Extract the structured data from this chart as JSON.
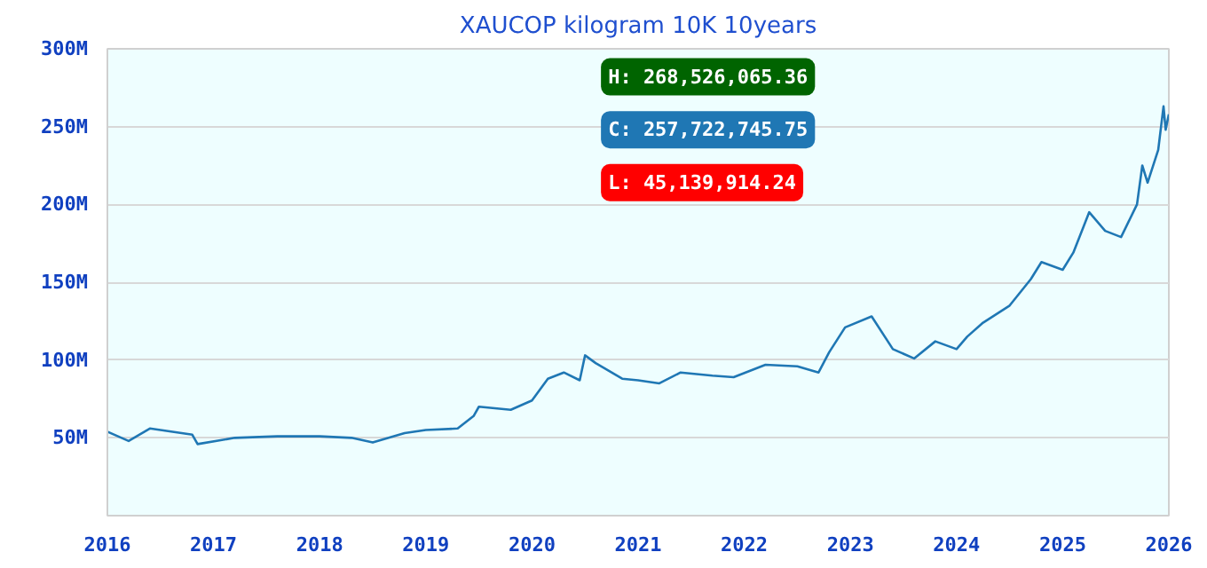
{
  "chart_data": {
    "type": "line",
    "title": "XAUCOP kilogram 10K 10years",
    "x": [
      2016.0,
      2016.2,
      2016.4,
      2016.5,
      2016.8,
      2016.85,
      2017.2,
      2017.6,
      2018.0,
      2018.3,
      2018.5,
      2018.8,
      2019.0,
      2019.3,
      2019.45,
      2019.5,
      2019.8,
      2020.0,
      2020.15,
      2020.3,
      2020.45,
      2020.5,
      2020.6,
      2020.85,
      2021.0,
      2021.2,
      2021.4,
      2021.7,
      2021.9,
      2022.2,
      2022.5,
      2022.7,
      2022.8,
      2022.95,
      2023.2,
      2023.4,
      2023.6,
      2023.8,
      2024.0,
      2024.1,
      2024.25,
      2024.5,
      2024.7,
      2024.8,
      2025.0,
      2025.1,
      2025.25,
      2025.4,
      2025.55,
      2025.7,
      2025.75,
      2025.8,
      2025.9,
      2025.95,
      2025.97,
      2026.0
    ],
    "series": [
      {
        "color": "#1f77b4",
        "values": [
          54,
          48,
          56,
          55,
          52,
          46,
          50,
          51,
          51,
          50,
          47,
          53,
          55,
          56,
          64,
          70,
          68,
          74,
          88,
          92,
          87,
          103,
          98,
          88,
          87,
          85,
          92,
          90,
          89,
          97,
          96,
          92,
          105,
          121,
          128,
          107,
          101,
          112,
          107,
          115,
          124,
          135,
          152,
          163,
          158,
          169,
          195,
          183,
          179,
          200,
          225,
          214,
          235,
          263,
          248,
          258
        ]
      }
    ],
    "xlim": [
      2016,
      2026
    ],
    "xticks": [
      2016,
      2017,
      2018,
      2019,
      2020,
      2021,
      2022,
      2023,
      2024,
      2025,
      2026
    ],
    "ylim": [
      0,
      300
    ],
    "yticks": [
      {
        "value": 50,
        "label": "50M"
      },
      {
        "value": 100,
        "label": "100M"
      },
      {
        "value": 150,
        "label": "150M"
      },
      {
        "value": 200,
        "label": "200M"
      },
      {
        "value": 250,
        "label": "250M"
      },
      {
        "value": 300,
        "label": "300M"
      }
    ],
    "annotations": [
      "H: 268,526,065.36",
      "C: 257,722,745.75",
      "L: 45,139,914.24"
    ],
    "grid": "y",
    "line_style": "solid"
  }
}
